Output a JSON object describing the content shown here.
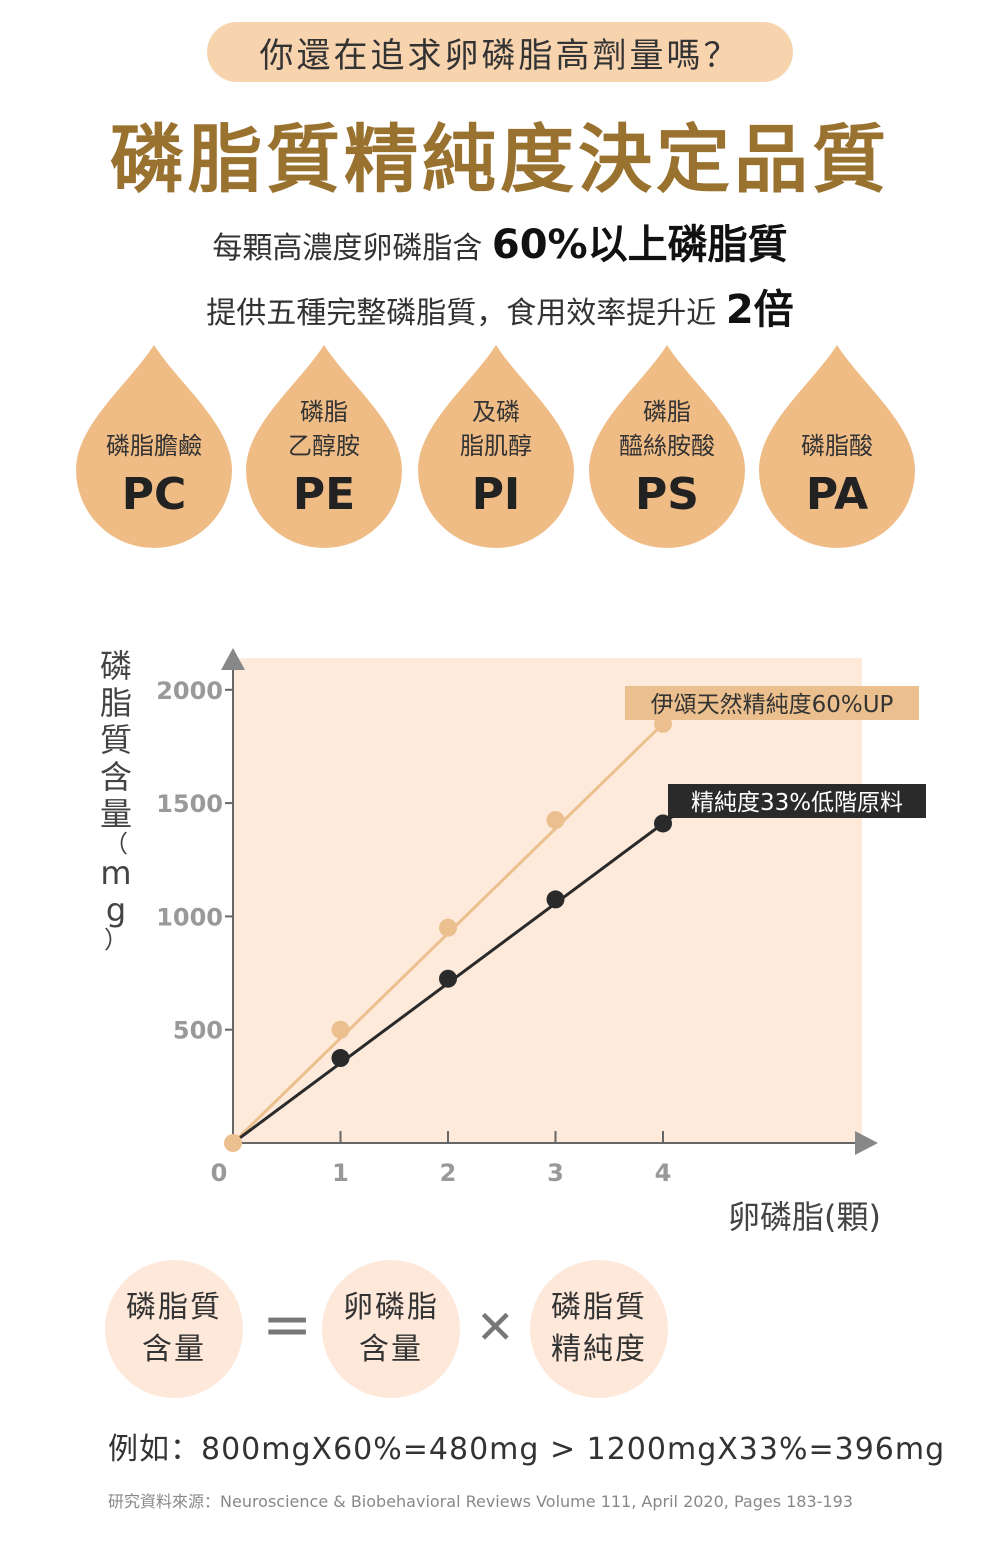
{
  "header": {
    "question": "你還在追求卵磷脂高劑量嗎？",
    "headline": "磷脂質精純度決定品質",
    "line1_text": "每顆高濃度卵磷脂含",
    "line1_highlight": "60%以上磷脂質",
    "line2_text": "提供五種完整磷脂質，食用效率提升近",
    "line2_highlight": "2倍"
  },
  "drops": [
    {
      "label1": "",
      "label2": "磷脂膽鹼",
      "code": "PC"
    },
    {
      "label1": "磷脂",
      "label2": "乙醇胺",
      "code": "PE"
    },
    {
      "label1": "及磷",
      "label2": "脂肌醇",
      "code": "PI"
    },
    {
      "label1": "磷脂",
      "label2": "醯絲胺酸",
      "code": "PS"
    },
    {
      "label1": "",
      "label2": "磷脂酸",
      "code": "PA"
    }
  ],
  "colors": {
    "drop": "#efbc86",
    "chart_bg": "#fdeadb",
    "series_high": "#ecc08e",
    "series_low": "#2a2a2a",
    "headline": "#9a7230"
  },
  "chart_data": {
    "type": "line",
    "ylabel": "磷脂質含量（mg）",
    "xlabel": "卵磷脂(顆)",
    "x": [
      0,
      1,
      2,
      3,
      4
    ],
    "xticks": [
      "0",
      "1",
      "2",
      "3",
      "4"
    ],
    "yticks": [
      500,
      1000,
      1500,
      2000
    ],
    "ylim": [
      0,
      2250
    ],
    "xlim": [
      0,
      5.8
    ],
    "series": [
      {
        "name": "伊頌天然精純度60%UP",
        "values": [
          0,
          500,
          950,
          1425,
          1850
        ]
      },
      {
        "name": "精純度33%低階原料",
        "values": [
          0,
          375,
          725,
          1075,
          1410
        ]
      }
    ]
  },
  "formula": {
    "a1": "磷脂質",
    "a2": "含量",
    "eq": "=",
    "b1": "卵磷脂",
    "b2": "含量",
    "times": "✕",
    "c1": "磷脂質",
    "c2": "精純度"
  },
  "example": "例如：800mgX60%=480mg > 1200mgX33%=396mg",
  "source": "研究資料來源：Neuroscience & Biobehavioral Reviews Volume 111, April 2020, Pages 183-193"
}
